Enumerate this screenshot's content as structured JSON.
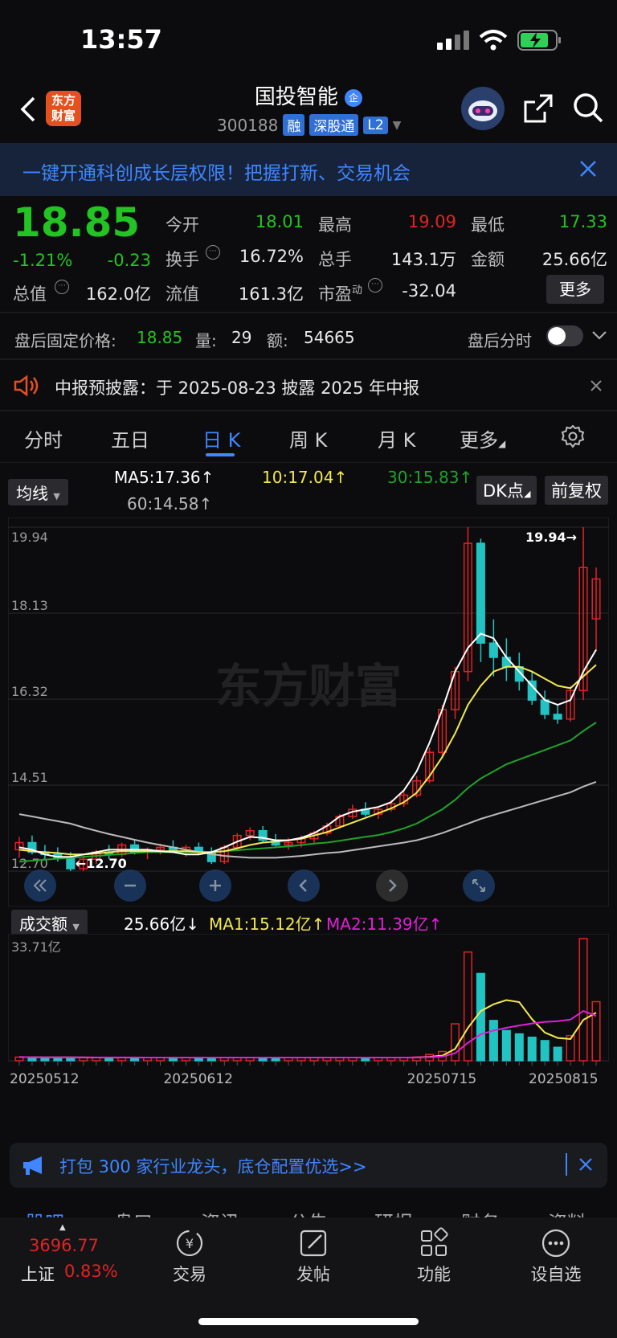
{
  "status": {
    "time": "13:57"
  },
  "header": {
    "title": "国投智能",
    "title_badge": "企",
    "logo_text": "东方财富",
    "code": "300188",
    "tags": [
      "融",
      "深股通",
      "L2"
    ]
  },
  "banner": {
    "text": "一键开通科创成长层权限！把握打新、交易机会"
  },
  "quote": {
    "price": "18.85",
    "change_pct": "-1.21%",
    "change": "-0.23",
    "open_label": "今开",
    "open": "18.01",
    "high_label": "最高",
    "high": "19.09",
    "low_label": "最低",
    "low": "17.33",
    "turnover_label": "换手",
    "turnover": "16.72%",
    "volume_label": "总手",
    "volume": "143.1万",
    "amount_label": "金额",
    "amount": "25.66亿",
    "mktcap_label": "总值",
    "mktcap": "162.0亿",
    "float_label": "流值",
    "float": "161.3亿",
    "pe_label": "市盈",
    "pe_sup": "动",
    "pe": "-32.04",
    "more": "更多"
  },
  "afterhours": {
    "price_label": "盘后固定价格:",
    "price": "18.85",
    "vol_label": "量:",
    "vol": "29",
    "amt_label": "额:",
    "amt": "54665",
    "timeshare_label": "盘后分时"
  },
  "notice": {
    "text": "中报预披露：于 2025-08-23 披露 2025 年中报"
  },
  "tabs": [
    "分时",
    "五日",
    "日 K",
    "周 K",
    "月 K",
    "更多"
  ],
  "chart_header": {
    "indicator": "均线",
    "ma5": "MA5:17.36",
    "ma10": "10:17.04",
    "ma30": "30:15.83",
    "ma60": "60:14.58",
    "dk": "DK点",
    "adjust": "前复权"
  },
  "volume_header": {
    "indicator": "成交额",
    "amount": "25.66亿",
    "ma1": "MA1:15.12亿",
    "ma2": "MA2:11.39亿",
    "ymax": "33.71亿"
  },
  "colors": {
    "up": "#e02323",
    "down": "#22c3c3",
    "ma5": "#ffffff",
    "ma10": "#f2e94e",
    "ma30": "#1fa32a",
    "ma60": "#bbbbbb",
    "accent": "#3f86ff"
  },
  "chart_data": {
    "type": "candlestick",
    "y_ticks": [
      "19.94",
      "18.13",
      "16.32",
      "14.51",
      "12.70"
    ],
    "ylim": [
      12.7,
      19.94
    ],
    "annotations": {
      "high": "19.94",
      "low": "12.70"
    },
    "x_ticks": [
      "20250512",
      "20250612",
      "20250715",
      "20250815"
    ],
    "candles": [
      [
        13.15,
        13.42,
        12.98,
        13.3
      ],
      [
        13.3,
        13.45,
        13.05,
        13.1
      ],
      [
        13.1,
        13.25,
        12.95,
        13.05
      ],
      [
        13.05,
        13.2,
        12.9,
        12.98
      ],
      [
        12.98,
        13.1,
        12.7,
        12.75
      ],
      [
        12.75,
        13.05,
        12.7,
        12.95
      ],
      [
        12.95,
        13.15,
        12.85,
        13.1
      ],
      [
        13.1,
        13.25,
        12.95,
        13.05
      ],
      [
        13.05,
        13.3,
        13.0,
        13.25
      ],
      [
        13.25,
        13.35,
        13.05,
        13.1
      ],
      [
        13.1,
        13.2,
        12.95,
        13.15
      ],
      [
        13.15,
        13.28,
        13.05,
        13.2
      ],
      [
        13.2,
        13.35,
        13.1,
        13.12
      ],
      [
        13.12,
        13.25,
        13.0,
        13.2
      ],
      [
        13.2,
        13.3,
        13.05,
        13.1
      ],
      [
        13.1,
        13.2,
        12.85,
        12.9
      ],
      [
        12.9,
        13.25,
        12.85,
        13.2
      ],
      [
        13.2,
        13.5,
        13.15,
        13.45
      ],
      [
        13.45,
        13.62,
        13.35,
        13.55
      ],
      [
        13.55,
        13.65,
        13.3,
        13.35
      ],
      [
        13.35,
        13.48,
        13.22,
        13.25
      ],
      [
        13.25,
        13.4,
        13.15,
        13.3
      ],
      [
        13.3,
        13.45,
        13.2,
        13.38
      ],
      [
        13.38,
        13.55,
        13.3,
        13.5
      ],
      [
        13.5,
        13.72,
        13.45,
        13.65
      ],
      [
        13.65,
        13.9,
        13.6,
        13.85
      ],
      [
        13.85,
        14.1,
        13.8,
        14.0
      ],
      [
        14.0,
        14.15,
        13.85,
        13.9
      ],
      [
        13.9,
        14.05,
        13.8,
        14.0
      ],
      [
        14.0,
        14.2,
        13.95,
        14.12
      ],
      [
        14.12,
        14.4,
        14.05,
        14.3
      ],
      [
        14.3,
        14.7,
        14.25,
        14.6
      ],
      [
        14.6,
        15.3,
        14.55,
        15.2
      ],
      [
        15.2,
        16.2,
        15.1,
        16.1
      ],
      [
        16.1,
        17.0,
        15.9,
        16.9
      ],
      [
        16.9,
        19.94,
        16.7,
        19.6
      ],
      [
        19.6,
        19.7,
        17.1,
        17.5
      ],
      [
        17.5,
        18.0,
        16.8,
        17.2
      ],
      [
        17.2,
        17.6,
        16.7,
        17.0
      ],
      [
        17.0,
        17.3,
        16.5,
        16.7
      ],
      [
        16.7,
        16.9,
        16.2,
        16.3
      ],
      [
        16.3,
        16.5,
        15.9,
        16.0
      ],
      [
        16.0,
        16.2,
        15.8,
        15.9
      ],
      [
        15.9,
        16.6,
        15.85,
        16.5
      ],
      [
        16.5,
        19.94,
        16.3,
        19.09
      ],
      [
        18.01,
        19.09,
        17.33,
        18.85
      ]
    ],
    "ma5": [
      13.2,
      13.15,
      13.05,
      13.0,
      13.0,
      13.05,
      13.1,
      13.15,
      13.15,
      13.15,
      13.15,
      13.12,
      13.1,
      13.05,
      13.05,
      13.1,
      13.2,
      13.32,
      13.42,
      13.4,
      13.35,
      13.35,
      13.4,
      13.5,
      13.65,
      13.85,
      13.95,
      14.0,
      14.05,
      14.15,
      14.4,
      14.8,
      15.4,
      16.1,
      16.9,
      17.4,
      17.7,
      17.6,
      17.2,
      16.9,
      16.6,
      16.3,
      16.2,
      16.3,
      16.9,
      17.36
    ],
    "ma10": [
      13.15,
      13.12,
      13.1,
      13.08,
      13.05,
      13.05,
      13.07,
      13.1,
      13.12,
      13.12,
      13.12,
      13.12,
      13.12,
      13.12,
      13.1,
      13.1,
      13.12,
      13.18,
      13.25,
      13.3,
      13.32,
      13.35,
      13.38,
      13.45,
      13.52,
      13.62,
      13.72,
      13.82,
      13.92,
      14.02,
      14.15,
      14.35,
      14.7,
      15.1,
      15.6,
      16.2,
      16.6,
      16.9,
      17.0,
      17.0,
      16.9,
      16.75,
      16.6,
      16.55,
      16.8,
      17.04
    ],
    "ma30": [
      12.9,
      12.92,
      12.94,
      12.96,
      12.98,
      13.0,
      13.02,
      13.04,
      13.06,
      13.08,
      13.1,
      13.1,
      13.1,
      13.1,
      13.1,
      13.1,
      13.12,
      13.14,
      13.16,
      13.18,
      13.2,
      13.22,
      13.25,
      13.28,
      13.3,
      13.34,
      13.38,
      13.42,
      13.46,
      13.52,
      13.6,
      13.7,
      13.85,
      14.0,
      14.2,
      14.45,
      14.65,
      14.8,
      14.95,
      15.05,
      15.15,
      15.25,
      15.35,
      15.45,
      15.65,
      15.83
    ],
    "ma60": [
      13.9,
      13.85,
      13.8,
      13.75,
      13.7,
      13.62,
      13.55,
      13.48,
      13.42,
      13.36,
      13.3,
      13.25,
      13.2,
      13.15,
      13.1,
      13.06,
      13.02,
      13.0,
      12.98,
      12.98,
      12.98,
      13.0,
      13.02,
      13.05,
      13.08,
      13.1,
      13.14,
      13.18,
      13.22,
      13.26,
      13.3,
      13.35,
      13.42,
      13.5,
      13.6,
      13.7,
      13.8,
      13.88,
      13.96,
      14.04,
      14.12,
      14.2,
      14.28,
      14.36,
      14.48,
      14.58
    ]
  },
  "promo": {
    "text": "打包 300 家行业龙头，底仓配置优选>>"
  },
  "bottom_tabs": [
    "股吧",
    "盘口",
    "资讯",
    "公告",
    "研报",
    "财务",
    "资料"
  ],
  "bottom_nav": {
    "index_value": "3696.77",
    "index_name": "上证",
    "index_change": "0.83%",
    "items": [
      "交易",
      "发帖",
      "功能",
      "设自选"
    ]
  }
}
